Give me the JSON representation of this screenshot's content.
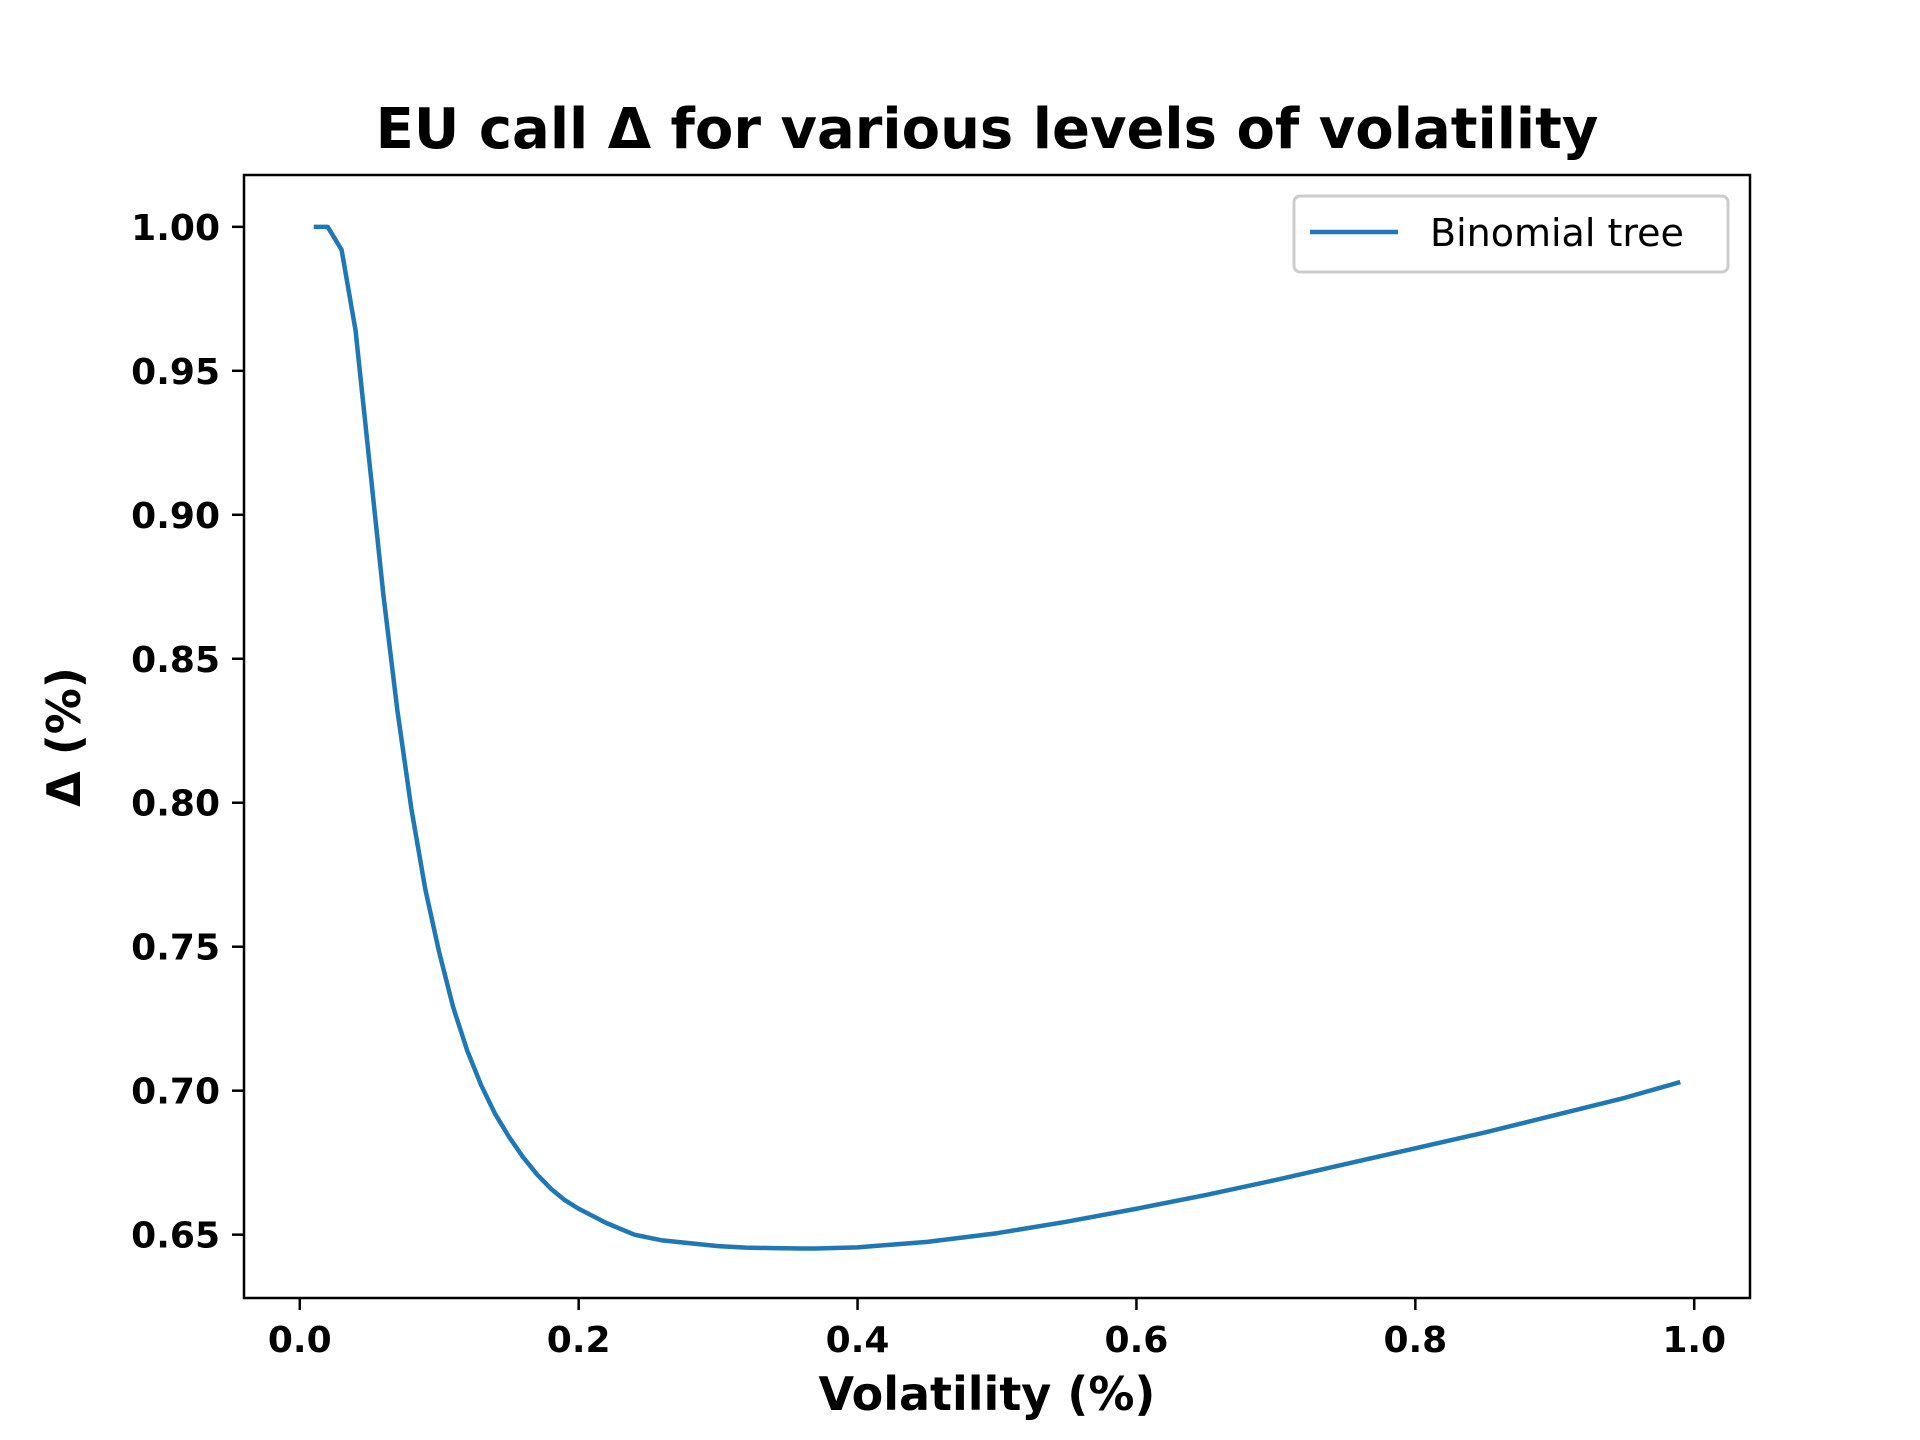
{
  "chart_data": {
    "type": "line",
    "title": "EU call Δ for various levels of volatility",
    "xlabel": "Volatility (%)",
    "ylabel": "Δ (%)",
    "xlim": [
      -0.04,
      1.04
    ],
    "ylim": [
      0.628,
      1.018
    ],
    "xticks": [
      0.0,
      0.2,
      0.4,
      0.6,
      0.8,
      1.0
    ],
    "xtick_labels": [
      "0.0",
      "0.2",
      "0.4",
      "0.6",
      "0.8",
      "1.0"
    ],
    "yticks": [
      0.65,
      0.7,
      0.75,
      0.8,
      0.85,
      0.9,
      0.95,
      1.0
    ],
    "ytick_labels": [
      "0.65",
      "0.70",
      "0.75",
      "0.80",
      "0.85",
      "0.90",
      "0.95",
      "1.00"
    ],
    "grid": false,
    "legend_position": "top-right",
    "series": [
      {
        "name": "Binomial tree",
        "color": "#1f77b4",
        "x": [
          0.01,
          0.02,
          0.03,
          0.04,
          0.05,
          0.06,
          0.07,
          0.08,
          0.09,
          0.1,
          0.11,
          0.12,
          0.13,
          0.14,
          0.15,
          0.16,
          0.17,
          0.18,
          0.19,
          0.2,
          0.22,
          0.24,
          0.26,
          0.28,
          0.3,
          0.32,
          0.34,
          0.36,
          0.37,
          0.38,
          0.4,
          0.45,
          0.5,
          0.55,
          0.6,
          0.65,
          0.7,
          0.75,
          0.8,
          0.85,
          0.9,
          0.95,
          0.99
        ],
        "y": [
          1.0,
          1.0,
          0.992,
          0.964,
          0.918,
          0.872,
          0.832,
          0.798,
          0.77,
          0.748,
          0.729,
          0.714,
          0.702,
          0.692,
          0.684,
          0.677,
          0.671,
          0.666,
          0.662,
          0.659,
          0.654,
          0.65,
          0.648,
          0.647,
          0.646,
          0.6455,
          0.6453,
          0.6452,
          0.6452,
          0.6453,
          0.6456,
          0.6475,
          0.6505,
          0.6545,
          0.659,
          0.6638,
          0.669,
          0.6745,
          0.68,
          0.6855,
          0.6915,
          0.6975,
          0.703
        ]
      }
    ]
  }
}
